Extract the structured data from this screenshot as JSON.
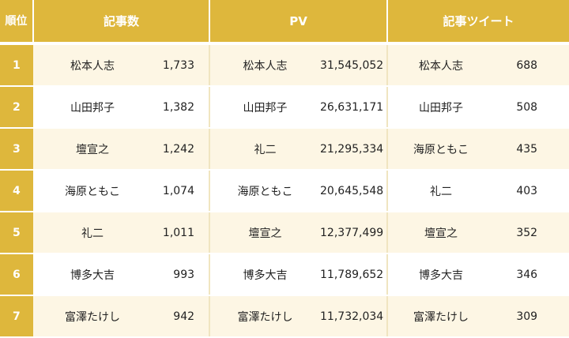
{
  "header": {
    "rank": "順位",
    "articles": "記事数",
    "pv": "PV",
    "tweets": "記事ツイート"
  },
  "rows": [
    {
      "rank": "1",
      "a_name": "松本人志",
      "a_val": "1,733",
      "p_name": "松本人志",
      "p_val": "31,545,052",
      "t_name": "松本人志",
      "t_val": "688"
    },
    {
      "rank": "2",
      "a_name": "山田邦子",
      "a_val": "1,382",
      "p_name": "山田邦子",
      "p_val": "26,631,171",
      "t_name": "山田邦子",
      "t_val": "508"
    },
    {
      "rank": "3",
      "a_name": "壇宣之",
      "a_val": "1,242",
      "p_name": "礼二",
      "p_val": "21,295,334",
      "t_name": "海原ともこ",
      "t_val": "435"
    },
    {
      "rank": "4",
      "a_name": "海原ともこ",
      "a_val": "1,074",
      "p_name": "海原ともこ",
      "p_val": "20,645,548",
      "t_name": "礼二",
      "t_val": "403"
    },
    {
      "rank": "5",
      "a_name": "礼二",
      "a_val": "1,011",
      "p_name": "壇宣之",
      "p_val": "12,377,499",
      "t_name": "壇宣之",
      "t_val": "352"
    },
    {
      "rank": "6",
      "a_name": "博多大吉",
      "a_val": "993",
      "p_name": "博多大吉",
      "p_val": "11,789,652",
      "t_name": "博多大吉",
      "t_val": "346"
    },
    {
      "rank": "7",
      "a_name": "富澤たけし",
      "a_val": "942",
      "p_name": "富澤たけし",
      "p_val": "11,732,034",
      "t_name": "富澤たけし",
      "t_val": "309"
    }
  ],
  "colors": {
    "accent": "#deb73c",
    "band": "#fdf6e4"
  }
}
